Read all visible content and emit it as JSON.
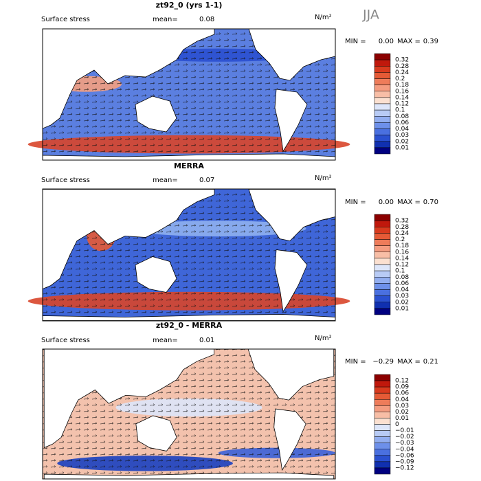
{
  "season": "JJA",
  "panels": [
    {
      "title": "zt92_0 (yrs 1-1)",
      "subtitle": "Surface stress",
      "mean_label": "mean=",
      "mean": "0.08",
      "units": "N/m²",
      "min_label": "MIN =",
      "min": "0.00",
      "max_label": "MAX =",
      "max": "0.39",
      "colorbar": [
        "0.32",
        "0.28",
        "0.24",
        "0.2",
        "0.18",
        "0.16",
        "0.14",
        "0.12",
        "0.1",
        "0.08",
        "0.06",
        "0.04",
        "0.03",
        "0.02",
        "0.01"
      ]
    },
    {
      "title": "MERRA",
      "subtitle": "Surface stress",
      "mean_label": "mean=",
      "mean": "0.07",
      "units": "N/m²",
      "min_label": "MIN =",
      "min": "0.00",
      "max_label": "MAX =",
      "max": "0.70",
      "colorbar": [
        "0.32",
        "0.28",
        "0.24",
        "0.2",
        "0.18",
        "0.16",
        "0.14",
        "0.12",
        "0.1",
        "0.08",
        "0.06",
        "0.04",
        "0.03",
        "0.02",
        "0.01"
      ]
    },
    {
      "title": "zt92_0 - MERRA",
      "subtitle": "Surface stress",
      "mean_label": "mean=",
      "mean": "0.01",
      "units": "N/m²",
      "min_label": "MIN =",
      "min": "−0.29",
      "max_label": "MAX =",
      "max": "0.21",
      "colorbar": [
        "0.12",
        "0.09",
        "0.06",
        "0.04",
        "0.03",
        "0.02",
        "0.01",
        "0",
        "−0.01",
        "−0.02",
        "−0.03",
        "−0.04",
        "−0.06",
        "−0.09",
        "−0.12"
      ]
    }
  ]
}
